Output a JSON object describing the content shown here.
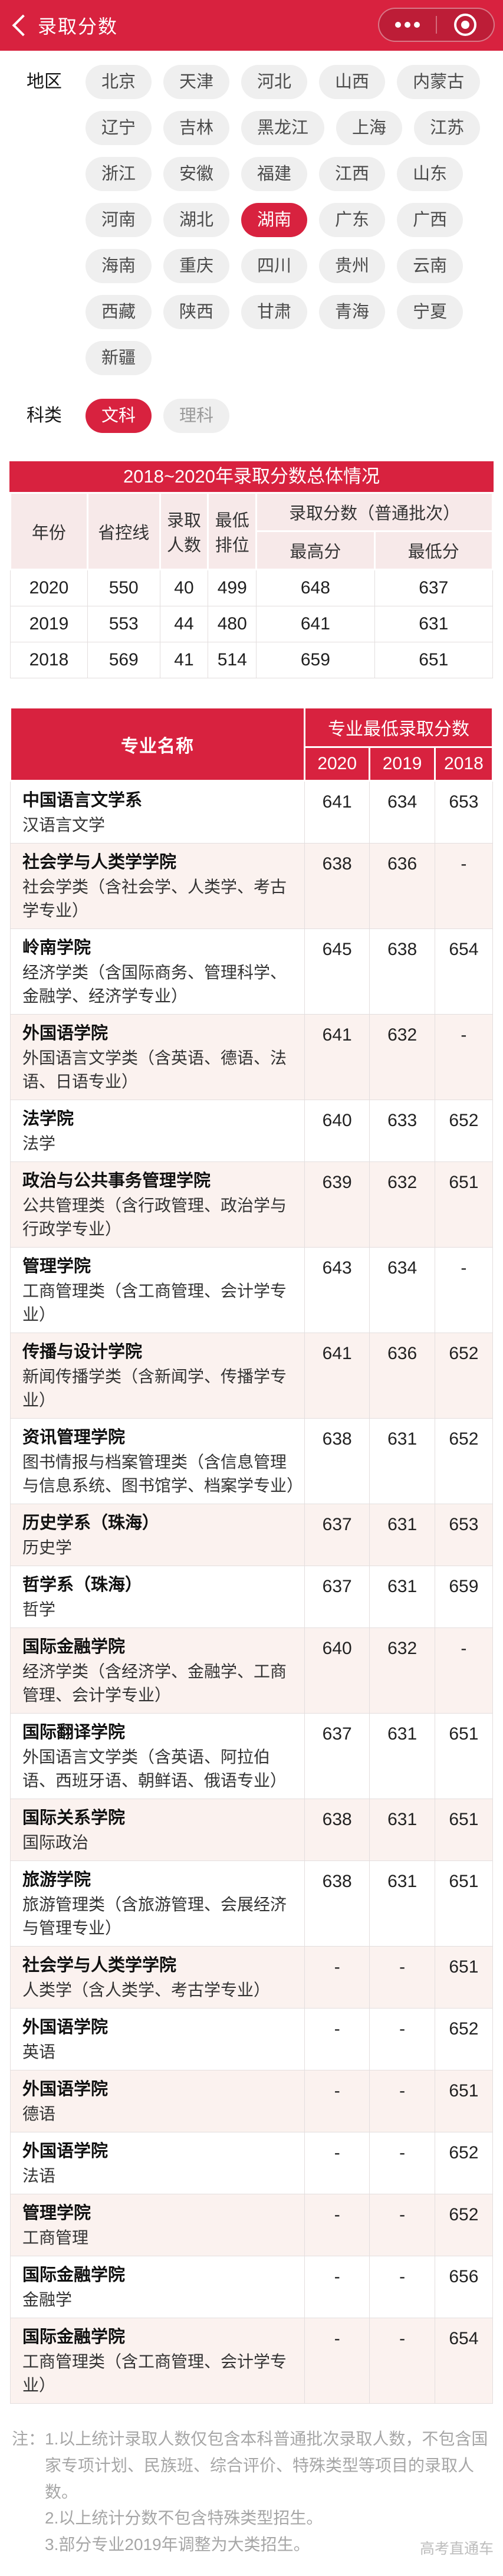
{
  "header": {
    "title": "录取分数"
  },
  "icons": [
    "back-icon",
    "more-icon",
    "exit-target-icon"
  ],
  "colors": {
    "accent_red": "#d8223f",
    "row_pink": "#fbf2ef",
    "header_pink": "#f7e9e9"
  },
  "region": {
    "label": "地区",
    "items": [
      {
        "name": "北京",
        "selected": false
      },
      {
        "name": "天津",
        "selected": false
      },
      {
        "name": "河北",
        "selected": false
      },
      {
        "name": "山西",
        "selected": false
      },
      {
        "name": "内蒙古",
        "selected": false
      },
      {
        "name": "辽宁",
        "selected": false
      },
      {
        "name": "吉林",
        "selected": false
      },
      {
        "name": "黑龙江",
        "selected": false
      },
      {
        "name": "上海",
        "selected": false
      },
      {
        "name": "江苏",
        "selected": false
      },
      {
        "name": "浙江",
        "selected": false
      },
      {
        "name": "安徽",
        "selected": false
      },
      {
        "name": "福建",
        "selected": false
      },
      {
        "name": "江西",
        "selected": false
      },
      {
        "name": "山东",
        "selected": false
      },
      {
        "name": "河南",
        "selected": false
      },
      {
        "name": "湖北",
        "selected": false
      },
      {
        "name": "湖南",
        "selected": true
      },
      {
        "name": "广东",
        "selected": false
      },
      {
        "name": "广西",
        "selected": false
      },
      {
        "name": "海南",
        "selected": false
      },
      {
        "name": "重庆",
        "selected": false
      },
      {
        "name": "四川",
        "selected": false
      },
      {
        "name": "贵州",
        "selected": false
      },
      {
        "name": "云南",
        "selected": false
      },
      {
        "name": "西藏",
        "selected": false
      },
      {
        "name": "陕西",
        "selected": false
      },
      {
        "name": "甘肃",
        "selected": false
      },
      {
        "name": "青海",
        "selected": false
      },
      {
        "name": "宁夏",
        "selected": false
      },
      {
        "name": "新疆",
        "selected": false
      }
    ]
  },
  "subject": {
    "label": "科类",
    "options": [
      {
        "label": "文科",
        "selected": true
      },
      {
        "label": "理科",
        "selected": false
      }
    ]
  },
  "summary_table": {
    "title": "2018~2020年录取分数总体情况",
    "headers": {
      "year": "年份",
      "control_line": "省控线",
      "admit_count": "录取人数",
      "min_rank": "最低排位",
      "score_group": "录取分数（普通批次）",
      "max_score": "最高分",
      "min_score": "最低分"
    },
    "rows": [
      [
        "2020",
        "550",
        "40",
        "499",
        "648",
        "637"
      ],
      [
        "2019",
        "553",
        "44",
        "480",
        "641",
        "631"
      ],
      [
        "2018",
        "569",
        "41",
        "514",
        "659",
        "651"
      ]
    ]
  },
  "major_table": {
    "name_header": "专业名称",
    "score_header": "专业最低录取分数",
    "years": [
      "2020",
      "2019",
      "2018"
    ],
    "rows": [
      {
        "college": "中国语言文学系",
        "major": "汉语言文学",
        "scores": [
          "641",
          "634",
          "653"
        ]
      },
      {
        "college": "社会学与人类学学院",
        "major": "社会学类（含社会学、人类学、考古学专业）",
        "scores": [
          "638",
          "636",
          "-"
        ]
      },
      {
        "college": "岭南学院",
        "major": "经济学类（含国际商务、管理科学、金融学、经济学专业）",
        "scores": [
          "645",
          "638",
          "654"
        ]
      },
      {
        "college": "外国语学院",
        "major": "外国语言文学类（含英语、德语、法语、日语专业）",
        "scores": [
          "641",
          "632",
          "-"
        ]
      },
      {
        "college": "法学院",
        "major": "法学",
        "scores": [
          "640",
          "633",
          "652"
        ]
      },
      {
        "college": "政治与公共事务管理学院",
        "major": "公共管理类（含行政管理、政治学与行政学专业）",
        "scores": [
          "639",
          "632",
          "651"
        ]
      },
      {
        "college": "管理学院",
        "major": "工商管理类（含工商管理、会计学专业）",
        "scores": [
          "643",
          "634",
          "-"
        ]
      },
      {
        "college": "传播与设计学院",
        "major": "新闻传播学类（含新闻学、传播学专业）",
        "scores": [
          "641",
          "636",
          "652"
        ]
      },
      {
        "college": "资讯管理学院",
        "major": "图书情报与档案管理类（含信息管理与信息系统、图书馆学、档案学专业）",
        "scores": [
          "638",
          "631",
          "652"
        ]
      },
      {
        "college": "历史学系（珠海）",
        "major": "历史学",
        "scores": [
          "637",
          "631",
          "653"
        ]
      },
      {
        "college": "哲学系（珠海）",
        "major": "哲学",
        "scores": [
          "637",
          "631",
          "659"
        ]
      },
      {
        "college": "国际金融学院",
        "major": "经济学类（含经济学、金融学、工商管理、会计学专业）",
        "scores": [
          "640",
          "632",
          "-"
        ]
      },
      {
        "college": "国际翻译学院",
        "major": "外国语言文学类（含英语、阿拉伯语、西班牙语、朝鲜语、俄语专业）",
        "scores": [
          "637",
          "631",
          "651"
        ]
      },
      {
        "college": "国际关系学院",
        "major": "国际政治",
        "scores": [
          "638",
          "631",
          "651"
        ]
      },
      {
        "college": "旅游学院",
        "major": "旅游管理类（含旅游管理、会展经济与管理专业）",
        "scores": [
          "638",
          "631",
          "651"
        ]
      },
      {
        "college": "社会学与人类学学院",
        "major": "人类学（含人类学、考古学专业）",
        "scores": [
          "-",
          "-",
          "651"
        ]
      },
      {
        "college": "外国语学院",
        "major": "英语",
        "scores": [
          "-",
          "-",
          "652"
        ]
      },
      {
        "college": "外国语学院",
        "major": "德语",
        "scores": [
          "-",
          "-",
          "651"
        ]
      },
      {
        "college": "外国语学院",
        "major": "法语",
        "scores": [
          "-",
          "-",
          "652"
        ]
      },
      {
        "college": "管理学院",
        "major": "工商管理",
        "scores": [
          "-",
          "-",
          "652"
        ]
      },
      {
        "college": "国际金融学院",
        "major": "金融学",
        "scores": [
          "-",
          "-",
          "656"
        ]
      },
      {
        "college": "国际金融学院",
        "major": "工商管理类（含工商管理、会计学专业）",
        "scores": [
          "-",
          "-",
          "654"
        ]
      }
    ]
  },
  "notes": {
    "prefix": "注：",
    "items": [
      "1.以上统计录取人数仅包含本科普通批次录取人数，不包含国家专项计划、民族班、综合评价、特殊类型等项目的录取人数。",
      "2.以上统计分数不包含特殊类型招生。",
      "3.部分专业2019年调整为大类招生。"
    ]
  },
  "watermark": "高考直通车"
}
